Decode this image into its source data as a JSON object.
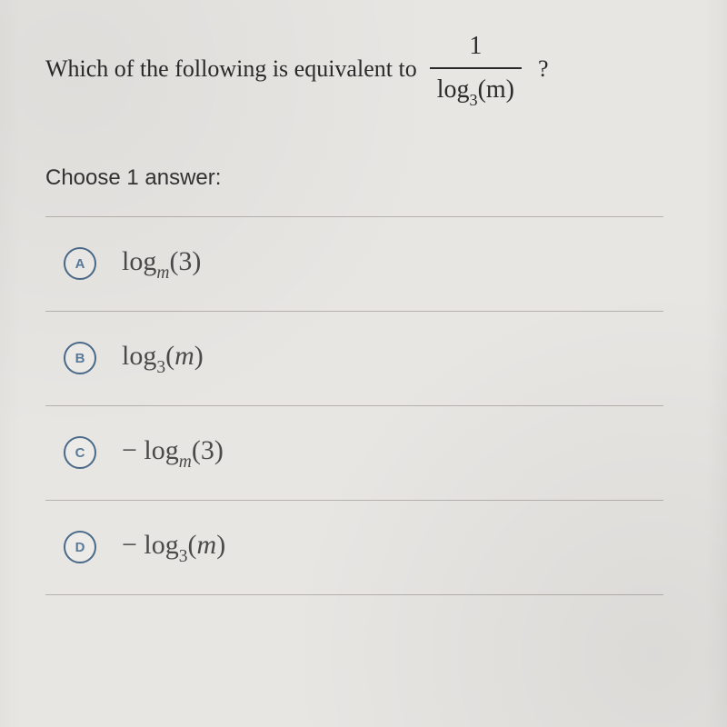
{
  "question": {
    "prefix": "Which of the following is equivalent to",
    "fraction": {
      "numerator": "1",
      "denom_func": "log",
      "denom_base": "3",
      "denom_arg": "(m)"
    },
    "suffix": "?"
  },
  "instruction": "Choose 1 answer:",
  "options": [
    {
      "letter": "A",
      "sign": "",
      "func": "log",
      "base": "m",
      "arg": "(3)"
    },
    {
      "letter": "B",
      "sign": "",
      "func": "log",
      "base": "3",
      "arg": "(m)"
    },
    {
      "letter": "C",
      "sign": "− ",
      "func": "log",
      "base": "m",
      "arg": "(3)"
    },
    {
      "letter": "D",
      "sign": "− ",
      "func": "log",
      "base": "3",
      "arg": "(m)"
    }
  ],
  "styling": {
    "type": "multiple-choice-question",
    "background_color": "#e8e6e3",
    "text_color": "#2a2a2a",
    "divider_color": "#b5b2ae",
    "radio_border_color": "#4a6a8a",
    "radio_text_color": "#5a7a9a",
    "question_fontsize": 26,
    "instruction_fontsize": 24,
    "option_fontsize": 30,
    "radio_diameter": 36,
    "option_row_padding_v": 32,
    "font_family_math": "Times New Roman",
    "font_family_ui": "sans-serif"
  }
}
